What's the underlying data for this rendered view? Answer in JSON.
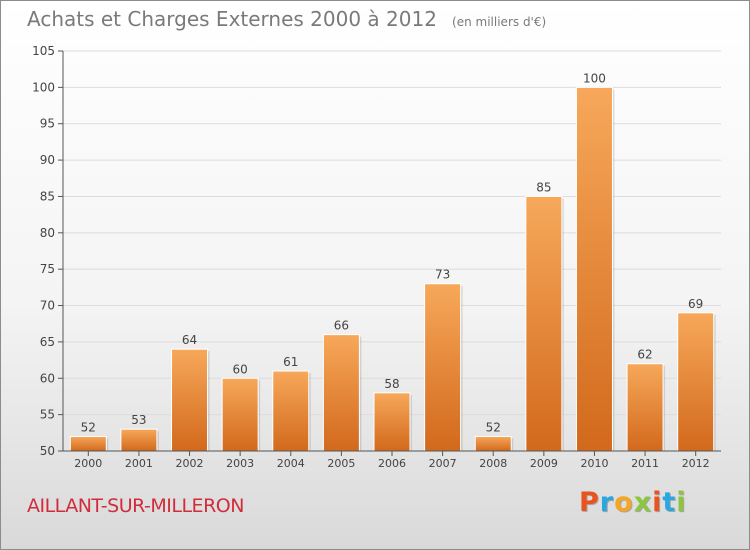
{
  "header": {
    "title": "Achats et Charges Externes 2000 à 2012",
    "unit": "(en milliers d'€)"
  },
  "footer": {
    "city": "AILLANT-SUR-MILLERON",
    "brand": "Proxiti",
    "brand_colors": [
      "#e8531e",
      "#2aa7e0",
      "#f5a623",
      "#8cc63f",
      "#e8531e",
      "#2aa7e0",
      "#8cc63f"
    ]
  },
  "colors": {
    "bar_top": "#f7a85a",
    "bar_bottom": "#d2691c",
    "axis": "#555555",
    "grid": "#dcdcdc",
    "label": "#444444"
  },
  "chart_data": {
    "type": "bar",
    "categories": [
      "2000",
      "2001",
      "2002",
      "2003",
      "2004",
      "2005",
      "2006",
      "2007",
      "2008",
      "2009",
      "2010",
      "2011",
      "2012"
    ],
    "values": [
      52,
      53,
      64,
      60,
      61,
      66,
      58,
      73,
      52,
      85,
      100,
      62,
      69
    ],
    "ylim": [
      50,
      105
    ],
    "yticks": [
      50,
      55,
      60,
      65,
      70,
      75,
      80,
      85,
      90,
      95,
      100,
      105
    ],
    "grid": true,
    "data_labels": true
  }
}
